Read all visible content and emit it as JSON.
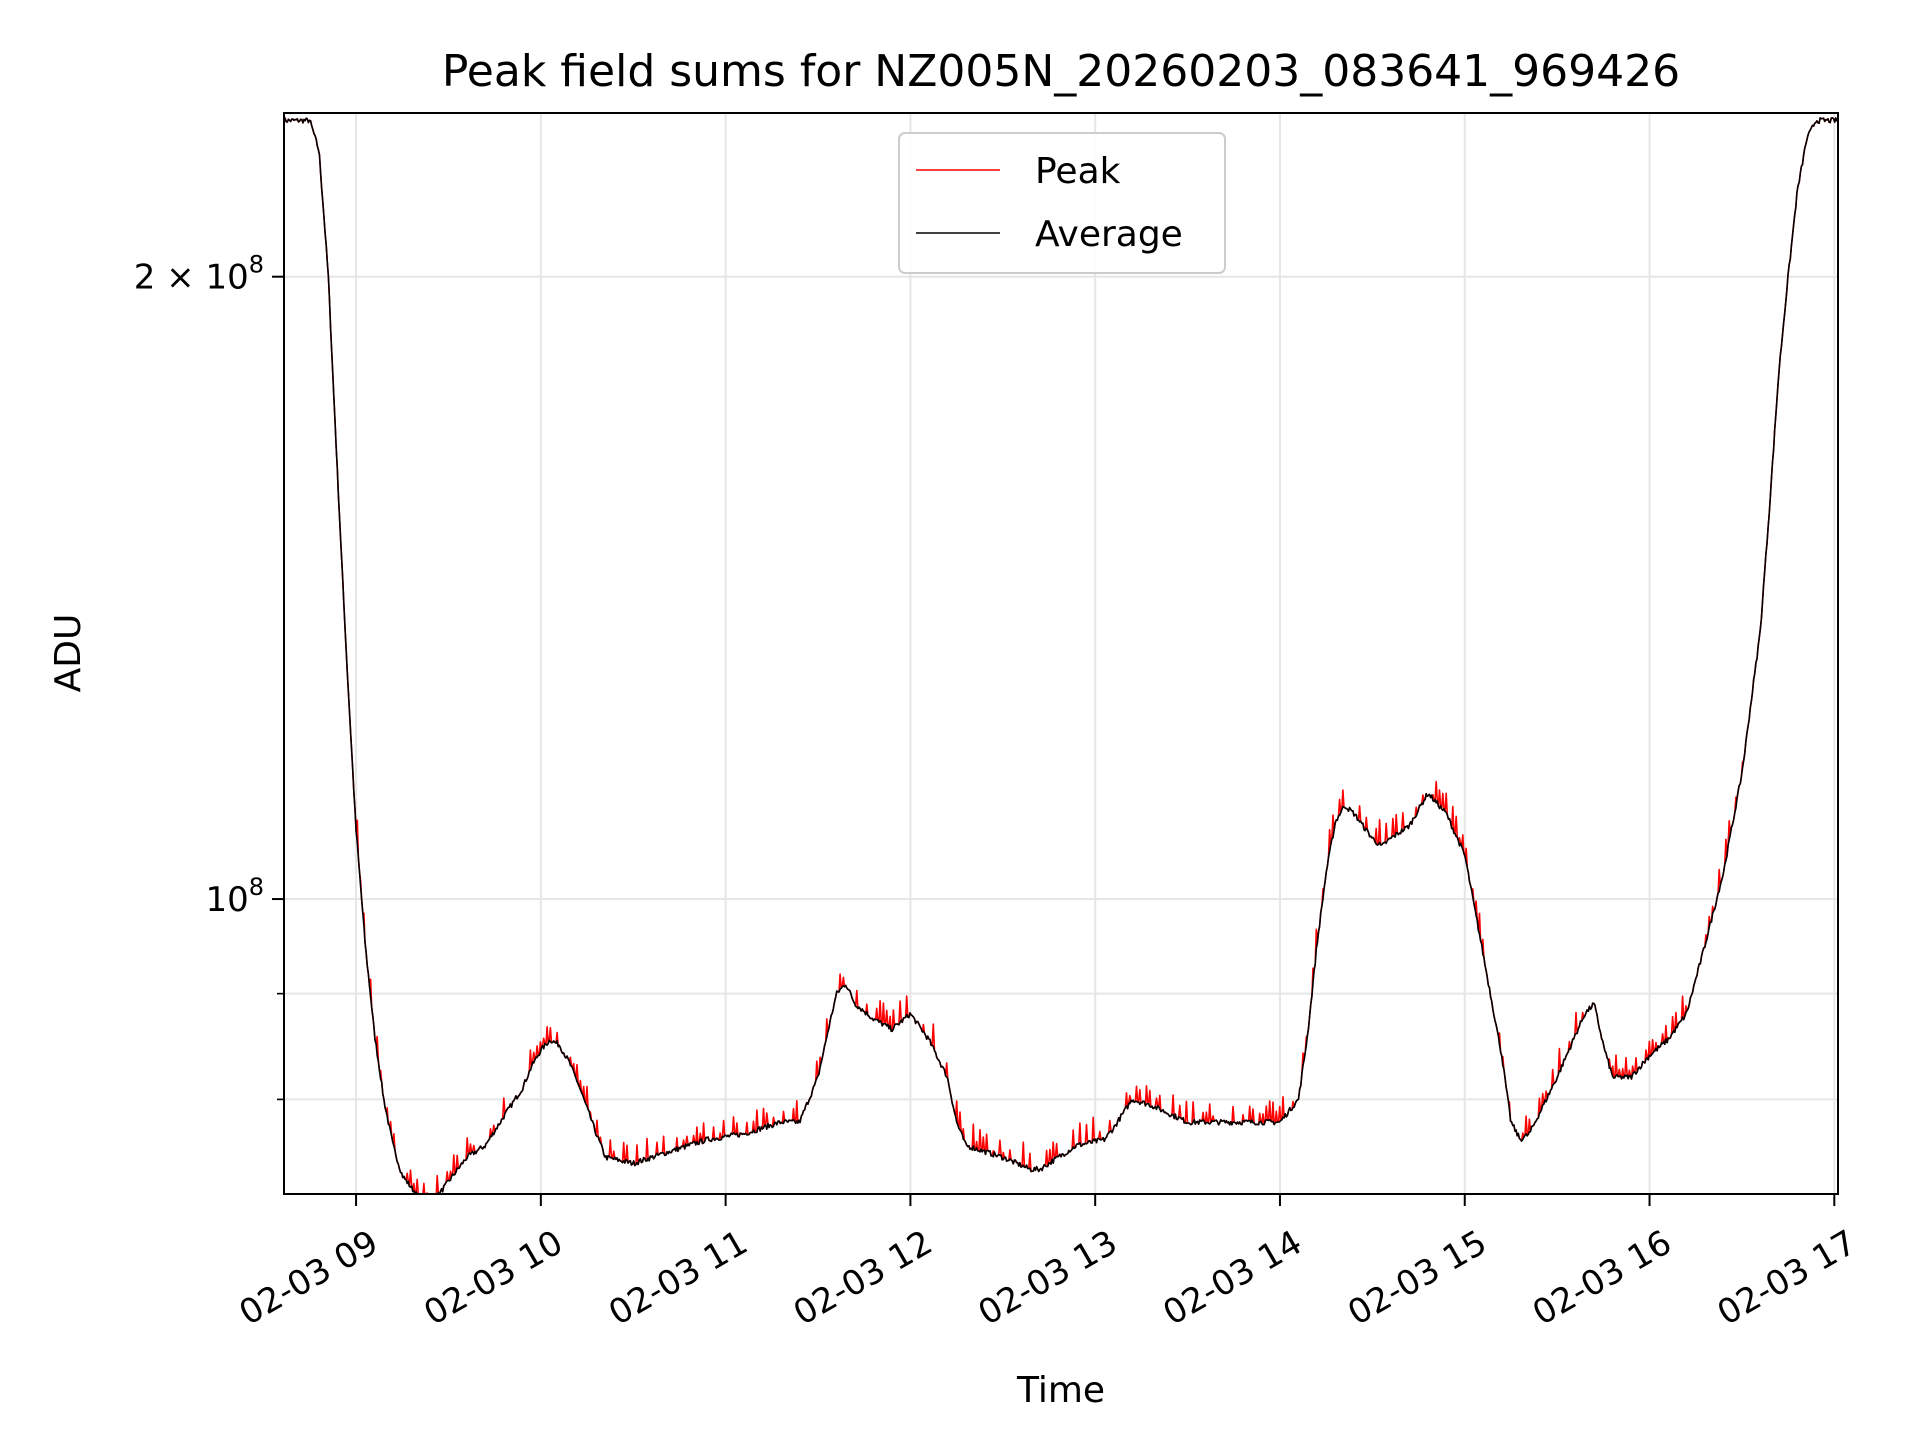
{
  "chart_data": {
    "type": "line",
    "title": "Peak field sums for NZ005N_20260203_083641_969426",
    "xlabel": "Time",
    "ylabel": "ADU",
    "yscale": "log",
    "grid": true,
    "legend_position": "top-center",
    "x_unit": "hours since 02-03 00:00",
    "xlim": [
      8.61,
      17.02
    ],
    "ylim": [
      72000000,
      240000000
    ],
    "x_ticks": [
      {
        "value": 9,
        "label": "02-03 09"
      },
      {
        "value": 10,
        "label": "02-03 10"
      },
      {
        "value": 11,
        "label": "02-03 11"
      },
      {
        "value": 12,
        "label": "02-03 12"
      },
      {
        "value": 13,
        "label": "02-03 13"
      },
      {
        "value": 14,
        "label": "02-03 14"
      },
      {
        "value": 15,
        "label": "02-03 15"
      },
      {
        "value": 16,
        "label": "02-03 16"
      },
      {
        "value": 17,
        "label": "02-03 17"
      }
    ],
    "y_major_ticks": [
      {
        "value": 100000000,
        "base": "10",
        "exp": "8",
        "mult": ""
      },
      {
        "value": 200000000,
        "base": "10",
        "exp": "8",
        "mult": "2 × "
      }
    ],
    "y_minor_ticks": [
      60000000,
      70000000,
      80000000,
      90000000
    ],
    "series": [
      {
        "name": "Peak",
        "color": "#ff0000",
        "spike_amplitude": 0.02
      },
      {
        "name": "Average",
        "color": "#000000",
        "x": [
          8.61,
          8.75,
          8.8,
          8.85,
          8.9,
          8.95,
          9.0,
          9.05,
          9.1,
          9.15,
          9.2,
          9.25,
          9.3,
          9.35,
          9.4,
          9.45,
          9.5,
          9.55,
          9.6,
          9.7,
          9.8,
          9.9,
          9.95,
          10.0,
          10.05,
          10.1,
          10.15,
          10.2,
          10.3,
          10.35,
          10.5,
          10.7,
          10.9,
          11.1,
          11.2,
          11.3,
          11.35,
          11.4,
          11.5,
          11.55,
          11.6,
          11.65,
          11.7,
          11.8,
          11.9,
          12.0,
          12.1,
          12.2,
          12.25,
          12.3,
          12.5,
          12.65,
          12.7,
          12.8,
          12.9,
          13.05,
          13.1,
          13.2,
          13.3,
          13.5,
          13.7,
          13.9,
          14.0,
          14.1,
          14.15,
          14.2,
          14.25,
          14.3,
          14.35,
          14.4,
          14.5,
          14.55,
          14.6,
          14.7,
          14.8,
          14.9,
          15.0,
          15.1,
          15.2,
          15.25,
          15.3,
          15.35,
          15.5,
          15.6,
          15.65,
          15.7,
          15.75,
          15.8,
          15.9,
          16.0,
          16.1,
          16.2,
          16.3,
          16.4,
          16.5,
          16.6,
          16.65,
          16.7,
          16.75,
          16.8,
          16.85,
          16.9,
          17.02
        ],
        "y": [
          238000000,
          238000000,
          230000000,
          200000000,
          160000000,
          130000000,
          108000000,
          95000000,
          86000000,
          80000000,
          76000000,
          73500000,
          72500000,
          71500000,
          71500000,
          72000000,
          73000000,
          74000000,
          75000000,
          76000000,
          78500000,
          81000000,
          83000000,
          84500000,
          85500000,
          85000000,
          83500000,
          81500000,
          77000000,
          75000000,
          74500000,
          75500000,
          76500000,
          77000000,
          77500000,
          78000000,
          78000000,
          78000000,
          82000000,
          86000000,
          90000000,
          91000000,
          89000000,
          87500000,
          86500000,
          88000000,
          85500000,
          82000000,
          78000000,
          76000000,
          75000000,
          74000000,
          74000000,
          75000000,
          76000000,
          76500000,
          77500000,
          80000000,
          79500000,
          78000000,
          78000000,
          78000000,
          78000000,
          80000000,
          86000000,
          95000000,
          103000000,
          109000000,
          111000000,
          110000000,
          107000000,
          106000000,
          107000000,
          108500000,
          112500000,
          110000000,
          105000000,
          94000000,
          84000000,
          78000000,
          76500000,
          77000000,
          82000000,
          86000000,
          88000000,
          89000000,
          85000000,
          82000000,
          82000000,
          84000000,
          85500000,
          88000000,
          95000000,
          103000000,
          115000000,
          135000000,
          155000000,
          180000000,
          200000000,
          220000000,
          233000000,
          238000000,
          238000000
        ]
      }
    ]
  }
}
